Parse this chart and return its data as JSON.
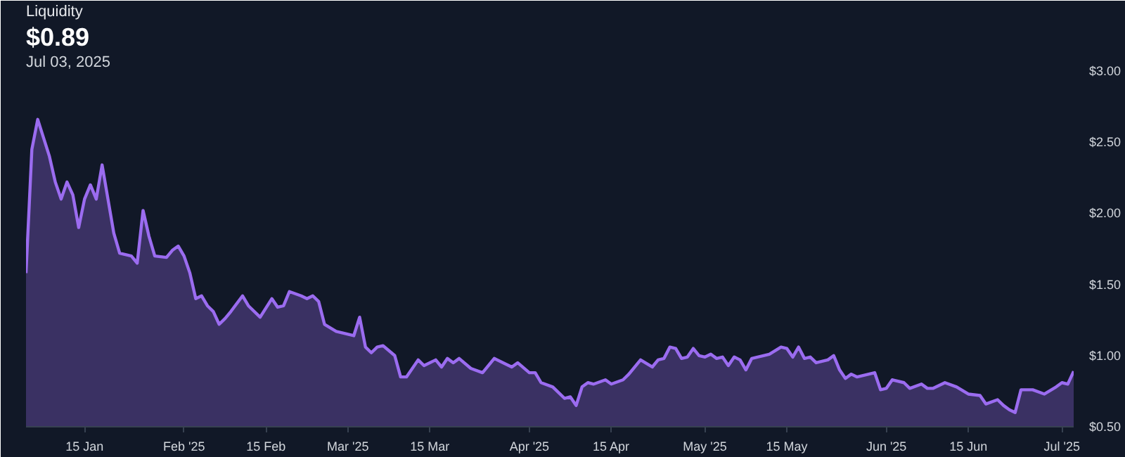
{
  "chart_data": {
    "type": "area",
    "title": "Liquidity",
    "subtitle": "$0.89",
    "annotations": [
      "Jul 03, 2025"
    ],
    "x": [
      "2025-01-05",
      "2025-01-06",
      "2025-01-07",
      "2025-01-08",
      "2025-01-09",
      "2025-01-10",
      "2025-01-11",
      "2025-01-12",
      "2025-01-13",
      "2025-01-14",
      "2025-01-15",
      "2025-01-16",
      "2025-01-17",
      "2025-01-18",
      "2025-01-19",
      "2025-01-20",
      "2025-01-21",
      "2025-01-23",
      "2025-01-24",
      "2025-01-25",
      "2025-01-26",
      "2025-01-27",
      "2025-01-29",
      "2025-01-30",
      "2025-01-31",
      "2025-02-01",
      "2025-02-02",
      "2025-02-03",
      "2025-02-04",
      "2025-02-05",
      "2025-02-06",
      "2025-02-07",
      "2025-02-08",
      "2025-02-09",
      "2025-02-11",
      "2025-02-12",
      "2025-02-14",
      "2025-02-16",
      "2025-02-17",
      "2025-02-18",
      "2025-02-19",
      "2025-02-21",
      "2025-02-22",
      "2025-02-23",
      "2025-02-24",
      "2025-02-25",
      "2025-02-27",
      "2025-02-28",
      "2025-03-02",
      "2025-03-03",
      "2025-03-04",
      "2025-03-05",
      "2025-03-06",
      "2025-03-07",
      "2025-03-09",
      "2025-03-10",
      "2025-03-11",
      "2025-03-13",
      "2025-03-14",
      "2025-03-16",
      "2025-03-17",
      "2025-03-18",
      "2025-03-19",
      "2025-03-20",
      "2025-03-22",
      "2025-03-24",
      "2025-03-26",
      "2025-03-28",
      "2025-03-29",
      "2025-03-30",
      "2025-04-01",
      "2025-04-02",
      "2025-04-03",
      "2025-04-05",
      "2025-04-07",
      "2025-04-08",
      "2025-04-09",
      "2025-04-10",
      "2025-04-11",
      "2025-04-12",
      "2025-04-14",
      "2025-04-15",
      "2025-04-17",
      "2025-04-18",
      "2025-04-20",
      "2025-04-22",
      "2025-04-23",
      "2025-04-24",
      "2025-04-25",
      "2025-04-26",
      "2025-04-27",
      "2025-04-28",
      "2025-04-29",
      "2025-04-30",
      "2025-05-01",
      "2025-05-02",
      "2025-05-03",
      "2025-05-04",
      "2025-05-05",
      "2025-05-06",
      "2025-05-07",
      "2025-05-08",
      "2025-05-09",
      "2025-05-11",
      "2025-05-12",
      "2025-05-14",
      "2025-05-15",
      "2025-05-16",
      "2025-05-17",
      "2025-05-18",
      "2025-05-19",
      "2025-05-20",
      "2025-05-22",
      "2025-05-23",
      "2025-05-24",
      "2025-05-25",
      "2025-05-26",
      "2025-05-27",
      "2025-05-30",
      "2025-05-31",
      "2025-06-01",
      "2025-06-02",
      "2025-06-04",
      "2025-06-05",
      "2025-06-07",
      "2025-06-08",
      "2025-06-09",
      "2025-06-11",
      "2025-06-13",
      "2025-06-15",
      "2025-06-17",
      "2025-06-18",
      "2025-06-20",
      "2025-06-21",
      "2025-06-22",
      "2025-06-23",
      "2025-06-24",
      "2025-06-26",
      "2025-06-28",
      "2025-06-30",
      "2025-07-01",
      "2025-07-02",
      "2025-07-03"
    ],
    "series": [
      {
        "color": "#9b6cf0",
        "values": [
          1.58,
          2.45,
          2.66,
          2.53,
          2.4,
          2.22,
          2.1,
          2.22,
          2.13,
          1.9,
          2.1,
          2.2,
          2.1,
          2.34,
          2.1,
          1.86,
          1.72,
          1.7,
          1.65,
          2.02,
          1.84,
          1.7,
          1.69,
          1.74,
          1.77,
          1.7,
          1.58,
          1.4,
          1.42,
          1.35,
          1.31,
          1.22,
          1.26,
          1.31,
          1.42,
          1.35,
          1.27,
          1.4,
          1.34,
          1.35,
          1.45,
          1.42,
          1.4,
          1.42,
          1.38,
          1.22,
          1.17,
          1.16,
          1.14,
          1.27,
          1.06,
          1.02,
          1.06,
          1.07,
          1.0,
          0.85,
          0.85,
          0.97,
          0.93,
          0.97,
          0.92,
          0.98,
          0.95,
          0.98,
          0.91,
          0.88,
          0.98,
          0.94,
          0.92,
          0.95,
          0.88,
          0.88,
          0.81,
          0.78,
          0.7,
          0.71,
          0.65,
          0.78,
          0.81,
          0.8,
          0.83,
          0.8,
          0.83,
          0.87,
          0.97,
          0.92,
          0.97,
          0.98,
          1.06,
          1.05,
          0.98,
          0.99,
          1.05,
          1.0,
          0.99,
          1.01,
          0.98,
          0.99,
          0.93,
          0.99,
          0.97,
          0.9,
          0.98,
          1.0,
          1.01,
          1.06,
          1.05,
          0.99,
          1.06,
          0.98,
          0.99,
          0.95,
          0.97,
          1.0,
          0.9,
          0.84,
          0.87,
          0.85,
          0.88,
          0.76,
          0.77,
          0.83,
          0.81,
          0.77,
          0.8,
          0.77,
          0.77,
          0.81,
          0.78,
          0.73,
          0.72,
          0.66,
          0.69,
          0.65,
          0.62,
          0.6,
          0.76,
          0.76,
          0.73,
          0.78,
          0.81,
          0.8,
          0.89
        ]
      }
    ],
    "xlim": [
      "2025-01-05",
      "2025-07-03"
    ],
    "xticks": [
      {
        "value": "2025-01-15",
        "label": "15 Jan"
      },
      {
        "value": "2025-02-01",
        "label": "Feb '25"
      },
      {
        "value": "2025-02-15",
        "label": "15 Feb"
      },
      {
        "value": "2025-03-01",
        "label": "Mar '25"
      },
      {
        "value": "2025-03-15",
        "label": "15 Mar"
      },
      {
        "value": "2025-04-01",
        "label": "Apr '25"
      },
      {
        "value": "2025-04-15",
        "label": "15 Apr"
      },
      {
        "value": "2025-05-01",
        "label": "May '25"
      },
      {
        "value": "2025-05-15",
        "label": "15 May"
      },
      {
        "value": "2025-06-01",
        "label": "Jun '25"
      },
      {
        "value": "2025-06-15",
        "label": "15 Jun"
      },
      {
        "value": "2025-07-01",
        "label": "Jul '25"
      }
    ],
    "ylim": [
      0.5,
      3.0
    ],
    "yticks": [
      {
        "value": 0.5,
        "label": "$0.50"
      },
      {
        "value": 1.0,
        "label": "$1.00"
      },
      {
        "value": 1.5,
        "label": "$1.50"
      },
      {
        "value": 2.0,
        "label": "$2.00"
      },
      {
        "value": 2.5,
        "label": "$2.50"
      },
      {
        "value": 3.0,
        "label": "$3.00"
      }
    ],
    "grid": false
  }
}
